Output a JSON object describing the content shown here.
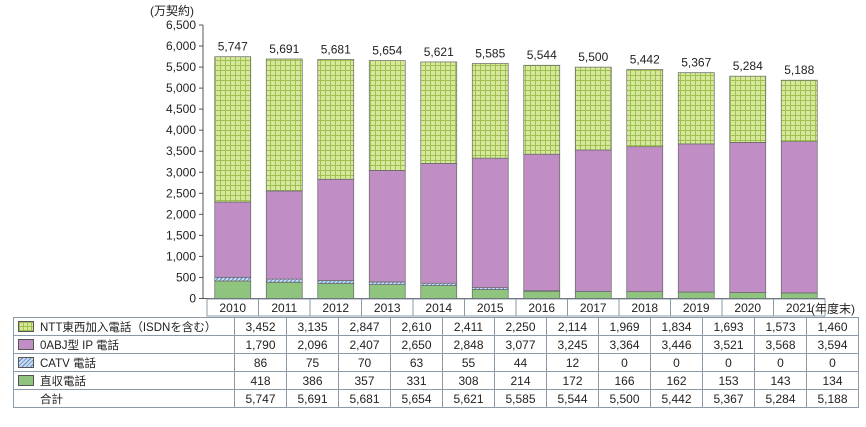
{
  "chart_data": {
    "type": "bar",
    "stacked": true,
    "yunit": "(万契約)",
    "xunit": "(年度末)",
    "ylim": [
      0,
      6500
    ],
    "yticks": [
      "6,500",
      "6,000",
      "5,500",
      "5,000",
      "4,500",
      "4,000",
      "3,500",
      "3,000",
      "2,500",
      "2,000",
      "1,500",
      "1,000",
      "500",
      "0"
    ],
    "categories": [
      "2010",
      "2011",
      "2012",
      "2013",
      "2014",
      "2015",
      "2016",
      "2017",
      "2018",
      "2019",
      "2020",
      "2021"
    ],
    "series": [
      {
        "name": "NTT東西加入電話（ISDNを含む）",
        "color": "#d6e89a",
        "pattern": "grid",
        "values": [
          3452,
          3135,
          2847,
          2610,
          2411,
          2250,
          2114,
          1969,
          1834,
          1693,
          1573,
          1460
        ],
        "labels": [
          "3,452",
          "3,135",
          "2,847",
          "2,610",
          "2,411",
          "2,250",
          "2,114",
          "1,969",
          "1,834",
          "1,693",
          "1,573",
          "1,460"
        ]
      },
      {
        "name": "0ABJ型 IP 電話",
        "color": "#c08ec4",
        "pattern": "solid",
        "values": [
          1790,
          2096,
          2407,
          2650,
          2848,
          3077,
          3245,
          3364,
          3446,
          3521,
          3568,
          3594
        ],
        "labels": [
          "1,790",
          "2,096",
          "2,407",
          "2,650",
          "2,848",
          "3,077",
          "3,245",
          "3,364",
          "3,446",
          "3,521",
          "3,568",
          "3,594"
        ]
      },
      {
        "name": "CATV 電話",
        "color": "#a9c3e8",
        "pattern": "hatch",
        "values": [
          86,
          75,
          70,
          63,
          55,
          44,
          12,
          0,
          0,
          0,
          0,
          0
        ],
        "labels": [
          "86",
          "75",
          "70",
          "63",
          "55",
          "44",
          "12",
          "0",
          "0",
          "0",
          "0",
          "0"
        ]
      },
      {
        "name": "直収電話",
        "color": "#8fc47f",
        "pattern": "solid",
        "values": [
          418,
          386,
          357,
          331,
          308,
          214,
          172,
          166,
          162,
          153,
          143,
          134
        ],
        "labels": [
          "418",
          "386",
          "357",
          "331",
          "308",
          "214",
          "172",
          "166",
          "162",
          "153",
          "143",
          "134"
        ]
      }
    ],
    "totals": {
      "name": "合計",
      "values": [
        5747,
        5691,
        5681,
        5654,
        5621,
        5585,
        5544,
        5500,
        5442,
        5367,
        5284,
        5188
      ],
      "labels": [
        "5,747",
        "5,691",
        "5,681",
        "5,654",
        "5,621",
        "5,585",
        "5,544",
        "5,500",
        "5,442",
        "5,367",
        "5,284",
        "5,188"
      ]
    }
  }
}
